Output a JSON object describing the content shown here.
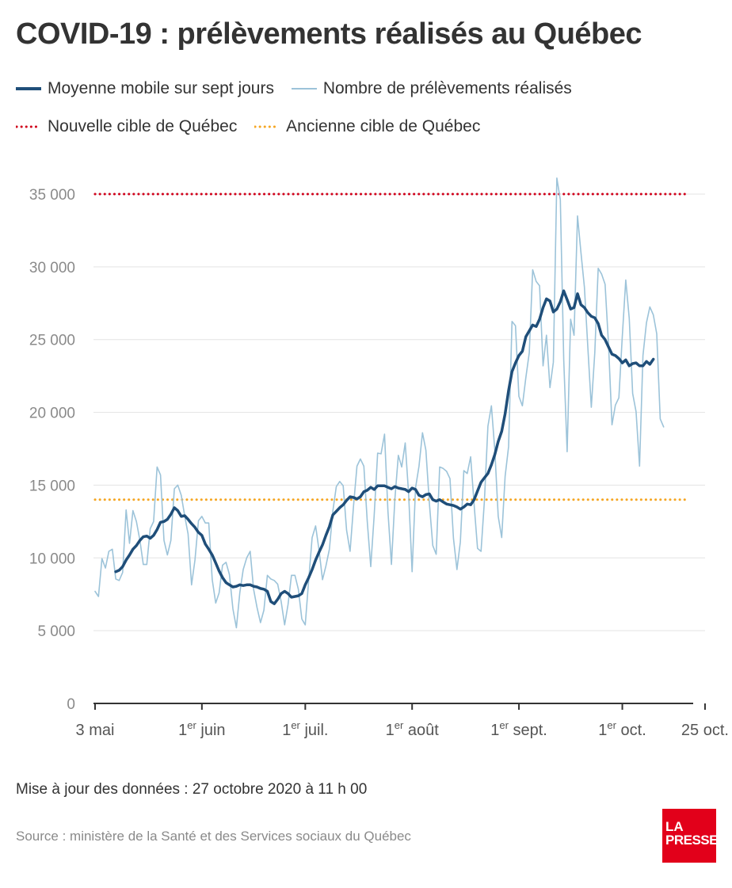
{
  "title": "COVID-19 : prélèvements réalisés au Québec",
  "legend": {
    "moving_average": "Moyenne mobile sur sept jours",
    "daily_samples": "Nombre de prélèvements réalisés",
    "new_target": "Nouvelle cible de Québec",
    "old_target": "Ancienne cible de Québec"
  },
  "colors": {
    "moving_average": "#1f4e79",
    "daily_samples": "#9cc3d9",
    "new_target": "#d0021b",
    "old_target": "#f5a623",
    "grid": "#e3e3e3",
    "logo": "#e2001a"
  },
  "footer": {
    "update": "Mise à jour des données : 27 octobre 2020 à 11 h 00",
    "source": "Source : ministère de la Santé et des Services sociaux du Québec"
  },
  "logo": {
    "line1": "LA",
    "line2": "PRESSE"
  },
  "chart_data": {
    "type": "line",
    "x_range": [
      "2020-05-01",
      "2020-10-25"
    ],
    "ylim": [
      0,
      35000
    ],
    "y_ticks": [
      {
        "value": 0,
        "label": "0"
      },
      {
        "value": 5000,
        "label": "5 000"
      },
      {
        "value": 10000,
        "label": "10 000"
      },
      {
        "value": 15000,
        "label": "15 000"
      },
      {
        "value": 20000,
        "label": "20 000"
      },
      {
        "value": 25000,
        "label": "25 000"
      },
      {
        "value": 30000,
        "label": "30 000"
      },
      {
        "value": 35000,
        "label": "35 000"
      }
    ],
    "x_ticks": [
      {
        "date": "2020-05-01",
        "label": "3 mai",
        "sup": ""
      },
      {
        "date": "2020-06-01",
        "label": " juin",
        "sup": "er"
      },
      {
        "date": "2020-07-01",
        "label": " juil.",
        "sup": "er"
      },
      {
        "date": "2020-08-01",
        "label": " août",
        "sup": "er"
      },
      {
        "date": "2020-09-01",
        "label": " sept.",
        "sup": "er"
      },
      {
        "date": "2020-10-01",
        "label": " oct.",
        "sup": "er"
      },
      {
        "date": "2020-10-25",
        "label": "25 oct.",
        "sup": ""
      }
    ],
    "tick_prefix": "1",
    "grid": true,
    "reference_lines": [
      {
        "name": "Nouvelle cible de Québec",
        "value": 35000,
        "style": "dotted"
      },
      {
        "name": "Ancienne cible de Québec",
        "value": 14000,
        "style": "dotted"
      }
    ],
    "series": [
      {
        "name": "Nombre de prélèvements réalisés",
        "start_date": "2020-05-01",
        "values": [
          7700,
          7350,
          9950,
          9300,
          10450,
          10600,
          8550,
          8450,
          9000,
          13300,
          11000,
          13250,
          12500,
          11200,
          9550,
          9550,
          12000,
          12500,
          16250,
          15700,
          11200,
          10200,
          11200,
          14750,
          15000,
          14300,
          12900,
          11650,
          8150,
          9850,
          12550,
          12850,
          12400,
          12400,
          8500,
          6900,
          7600,
          9500,
          9700,
          8850,
          6500,
          5200,
          7600,
          9200,
          10000,
          10450,
          7850,
          6600,
          5550,
          6400,
          8800,
          8550,
          8450,
          8200,
          7000,
          5400,
          6800,
          8800,
          8800,
          7850,
          5800,
          5400,
          8500,
          11400,
          12200,
          10500,
          8500,
          9450,
          10600,
          13200,
          14900,
          15250,
          14950,
          11900,
          10450,
          13600,
          16300,
          16800,
          16300,
          12500,
          9400,
          12900,
          17200,
          17150,
          18500,
          13200,
          9550,
          14000,
          17050,
          16250,
          17900,
          14400,
          9050,
          14800,
          16300,
          18600,
          17400,
          13750,
          10850,
          10250,
          16250,
          16150,
          15950,
          15450,
          11350,
          9200,
          11100,
          16000,
          15800,
          16950,
          13650,
          10650,
          10450,
          13950,
          19050,
          20450,
          17400,
          12850,
          11400,
          15600,
          17650,
          26250,
          25950,
          21100,
          20450,
          22400,
          24100,
          29800,
          29000,
          28700,
          23200,
          25300,
          21700,
          23450,
          36100,
          34600,
          23600,
          17300,
          26400,
          25300,
          33500,
          31000,
          28600,
          24500,
          20350,
          24100,
          29900,
          29500,
          28800,
          24700,
          19150,
          20500,
          21000,
          25200,
          29100,
          26450,
          21300,
          20050,
          16300,
          23900,
          26150,
          27250,
          26700,
          25400,
          19550,
          19000
        ],
        "style": "thin"
      },
      {
        "name": "Moyenne mobile sur sept jours",
        "start_date": "2020-05-07",
        "values": [
          9050,
          9150,
          9400,
          9850,
          10200,
          10600,
          10850,
          11200,
          11450,
          11500,
          11350,
          11550,
          11950,
          12450,
          12500,
          12650,
          13000,
          13450,
          13250,
          12850,
          12900,
          12650,
          12350,
          12100,
          11750,
          11550,
          10950,
          10600,
          10200,
          9650,
          9100,
          8650,
          8300,
          8150,
          8000,
          8050,
          8150,
          8100,
          8150,
          8150,
          8050,
          8000,
          7900,
          7850,
          7700,
          7000,
          6850,
          7150,
          7550,
          7700,
          7550,
          7300,
          7350,
          7400,
          7550,
          8150,
          8650,
          9200,
          9850,
          10400,
          10900,
          11550,
          12150,
          12950,
          13200,
          13450,
          13650,
          13950,
          14200,
          14150,
          14050,
          14200,
          14550,
          14650,
          14850,
          14700,
          14950,
          14950,
          14950,
          14850,
          14750,
          14900,
          14800,
          14750,
          14700,
          14550,
          14800,
          14700,
          14300,
          14200,
          14350,
          14400,
          14000,
          13900,
          14000,
          13850,
          13700,
          13650,
          13600,
          13500,
          13350,
          13500,
          13700,
          13650,
          14000,
          14600,
          15200,
          15500,
          15800,
          16400,
          17100,
          18000,
          18700,
          19900,
          21500,
          22800,
          23400,
          23900,
          24200,
          25200,
          25600,
          26000,
          25900,
          26400,
          27200,
          27800,
          27650,
          26900,
          27100,
          27600,
          28350,
          27750,
          27100,
          27200,
          28150,
          27400,
          27200,
          26850,
          26600,
          26500,
          26100,
          25300,
          25000,
          24500,
          24000,
          23900,
          23700,
          23400,
          23600,
          23200,
          23350,
          23400,
          23200,
          23200,
          23500,
          23300,
          23650
        ],
        "style": "thick"
      }
    ]
  }
}
